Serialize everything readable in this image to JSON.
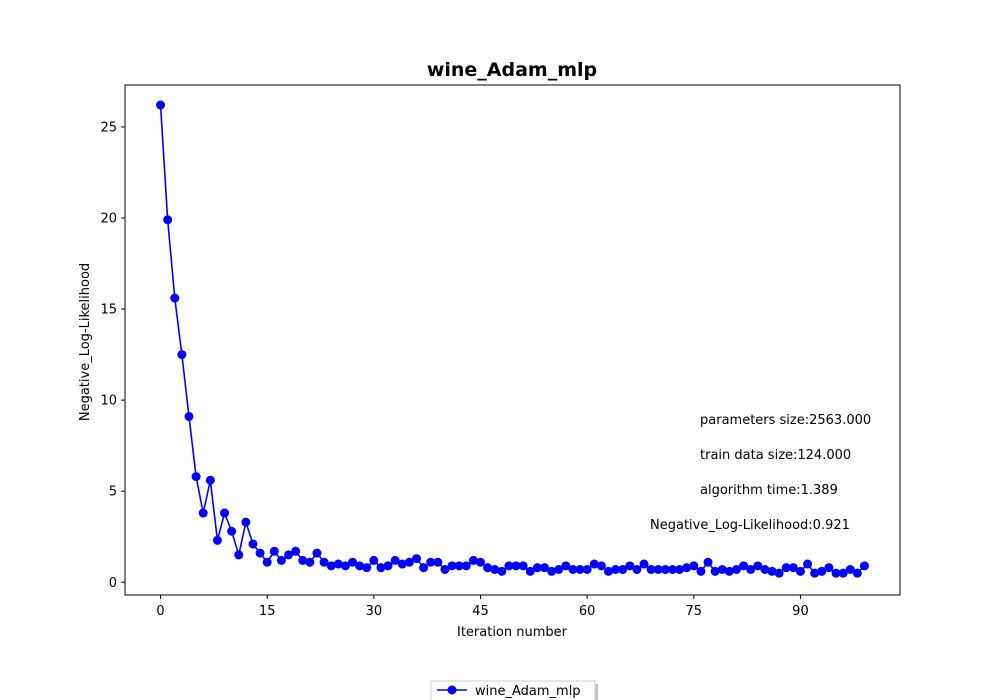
{
  "chart_data": {
    "type": "line",
    "title": "wine_Adam_mlp",
    "xlabel": "Iteration number",
    "ylabel": "Negative_Log-Likelihood",
    "xlim": [
      -5,
      104
    ],
    "ylim": [
      -0.7,
      27.3
    ],
    "xticks": [
      0,
      15,
      30,
      45,
      60,
      75,
      90
    ],
    "yticks": [
      0,
      5,
      10,
      15,
      20,
      25
    ],
    "grid": false,
    "legend_position": "bottom-center",
    "series": [
      {
        "name": "wine_Adam_mlp",
        "color": "#0000ff",
        "marker": "circle",
        "x": [
          0,
          1,
          2,
          3,
          4,
          5,
          6,
          7,
          8,
          9,
          10,
          11,
          12,
          13,
          14,
          15,
          16,
          17,
          18,
          19,
          20,
          21,
          22,
          23,
          24,
          25,
          26,
          27,
          28,
          29,
          30,
          31,
          32,
          33,
          34,
          35,
          36,
          37,
          38,
          39,
          40,
          41,
          42,
          43,
          44,
          45,
          46,
          47,
          48,
          49,
          50,
          51,
          52,
          53,
          54,
          55,
          56,
          57,
          58,
          59,
          60,
          61,
          62,
          63,
          64,
          65,
          66,
          67,
          68,
          69,
          70,
          71,
          72,
          73,
          74,
          75,
          76,
          77,
          78,
          79,
          80,
          81,
          82,
          83,
          84,
          85,
          86,
          87,
          88,
          89,
          90,
          91,
          92,
          93,
          94,
          95,
          96,
          97,
          98,
          99
        ],
        "values": [
          26.2,
          19.9,
          15.6,
          12.5,
          9.1,
          5.8,
          3.8,
          5.6,
          2.3,
          3.8,
          2.8,
          1.5,
          3.3,
          2.1,
          1.6,
          1.1,
          1.7,
          1.2,
          1.5,
          1.7,
          1.2,
          1.1,
          1.6,
          1.1,
          0.9,
          1.0,
          0.9,
          1.1,
          0.9,
          0.8,
          1.2,
          0.8,
          0.9,
          1.2,
          1.0,
          1.1,
          1.3,
          0.8,
          1.1,
          1.1,
          0.7,
          0.9,
          0.9,
          0.9,
          1.2,
          1.1,
          0.8,
          0.7,
          0.6,
          0.9,
          0.9,
          0.9,
          0.6,
          0.8,
          0.8,
          0.6,
          0.7,
          0.9,
          0.7,
          0.7,
          0.7,
          1.0,
          0.9,
          0.6,
          0.7,
          0.7,
          0.9,
          0.7,
          1.0,
          0.7,
          0.7,
          0.7,
          0.7,
          0.7,
          0.8,
          0.9,
          0.6,
          1.1,
          0.6,
          0.7,
          0.6,
          0.7,
          0.9,
          0.7,
          0.9,
          0.7,
          0.6,
          0.5,
          0.8,
          0.8,
          0.6,
          1.0,
          0.5,
          0.6,
          0.8,
          0.5,
          0.5,
          0.7,
          0.5,
          0.9
        ]
      }
    ],
    "annotations": [
      "parameters size:2563.000",
      "train data size:124.000",
      "algorithm time:1.389",
      "Negative_Log-Likelihood:0.921"
    ]
  }
}
